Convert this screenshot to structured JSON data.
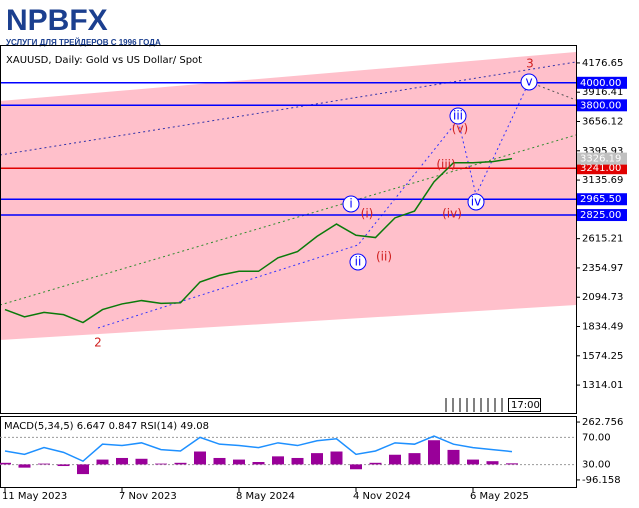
{
  "logo": {
    "name": "NPBFX",
    "tagline": "УСЛУГИ ДЛЯ ТРЕЙДЕРОВ С 1996 ГОДА"
  },
  "chart_data": [
    {
      "type": "line",
      "title": "XAUUSD, Daily:  Gold vs US Dollar/ Spot",
      "color": "#0a7a0a",
      "categories": [
        "11 May 2023",
        null,
        null,
        null,
        null,
        null,
        "7 Nov 2023",
        null,
        null,
        null,
        null,
        null,
        "8 May 2024",
        null,
        null,
        null,
        null,
        null,
        "4 Nov 2024",
        null,
        null,
        null,
        null,
        null,
        "6 May 2025",
        null,
        null
      ],
      "values": [
        1985,
        1920,
        1960,
        1940,
        1870,
        1985,
        2035,
        2065,
        2040,
        2045,
        2230,
        2290,
        2325,
        2325,
        2445,
        2500,
        2635,
        2745,
        2645,
        2625,
        2800,
        2860,
        3120,
        3290,
        3290,
        3300,
        3326.19
      ],
      "ylim": [
        1066,
        4327
      ],
      "yticks": [
        4176.65,
        3916.41,
        3656.12,
        3395.93,
        3135.69,
        2615.21,
        2354.97,
        2094.73,
        1834.49,
        1574.25,
        1314.01
      ],
      "levels": [
        {
          "value": 4000,
          "label": "4000.00",
          "color": "#0000ff"
        },
        {
          "value": 3800,
          "label": "3800.00",
          "color": "#0000ff"
        },
        {
          "value": 3241,
          "label": "3241.00",
          "color": "#e00000"
        },
        {
          "value": 2965.5,
          "label": "2965.50",
          "color": "#0000ff"
        },
        {
          "value": 2825,
          "label": "2825.00",
          "color": "#0000ff"
        }
      ],
      "last_price": {
        "value": 3326.19,
        "label": "3326.19"
      },
      "annotations": [
        "3",
        "2",
        "i",
        "(i)",
        "ii",
        "(ii)",
        "iii",
        "(iii)",
        "(v)",
        "(iv)",
        "iv",
        "v"
      ],
      "time_label": "17:00"
    },
    {
      "type": "line",
      "title": "MACD(5,34,5) 6.647 0.847 RSI(14) 49.08",
      "ylim": [
        -3,
        100
      ],
      "yticks": [
        {
          "value": 70,
          "label": "70.00"
        },
        {
          "value": 30,
          "label": "30.00"
        }
      ],
      "y2lim": [
        -140,
        294
      ],
      "y2ticks": [
        {
          "value": 262.756,
          "label": "262.756"
        },
        {
          "value": -96.158,
          "label": "-96.158"
        }
      ],
      "series": [
        {
          "color": "#990099",
          "axis": "y2",
          "type": "bar",
          "values": [
            10,
            -20,
            5,
            -10,
            -60,
            30,
            40,
            35,
            5,
            10,
            80,
            40,
            30,
            15,
            50,
            40,
            70,
            80,
            -30,
            10,
            60,
            70,
            150,
            90,
            30,
            20,
            6.647
          ]
        },
        {
          "color": "#1e90ff",
          "values": [
            50,
            45,
            55,
            48,
            35,
            60,
            58,
            62,
            52,
            50,
            70,
            60,
            58,
            55,
            62,
            58,
            65,
            68,
            45,
            50,
            62,
            60,
            72,
            60,
            55,
            52,
            49.08
          ]
        }
      ]
    }
  ]
}
